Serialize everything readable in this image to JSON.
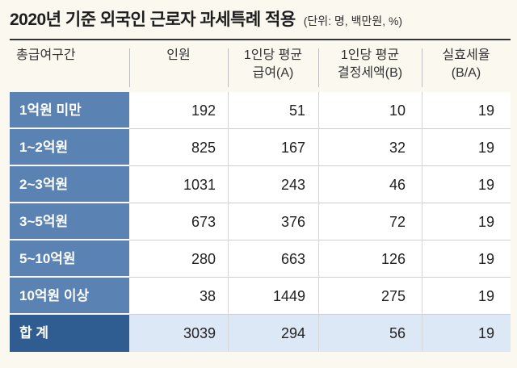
{
  "title": "2020년 기준 외국인 근로자 과세특례 적용",
  "unit": "(단위: 명, 백만원, %)",
  "headers": [
    [
      "총급여구간"
    ],
    [
      "인원"
    ],
    [
      "1인당 평균",
      "급여(A)"
    ],
    [
      "1인당 평균",
      "결정세액(B)"
    ],
    [
      "실효세율",
      "(B/A)"
    ]
  ],
  "chart_data": {
    "type": "table",
    "title": "2020년 기준 외국인 근로자 과세특례 적용",
    "unit": "(단위: 명, 백만원, %)",
    "columns": [
      "총급여구간",
      "인원",
      "1인당 평균 급여(A)",
      "1인당 평균 결정세액(B)",
      "실효세율 (B/A)"
    ],
    "rows": [
      [
        "1억원 미만",
        "192",
        "51",
        "10",
        "19"
      ],
      [
        "1~2억원",
        "825",
        "167",
        "32",
        "19"
      ],
      [
        "2~3억원",
        "1031",
        "243",
        "46",
        "19"
      ],
      [
        "3~5억원",
        "673",
        "376",
        "72",
        "19"
      ],
      [
        "5~10억원",
        "280",
        "663",
        "126",
        "19"
      ],
      [
        "10억원 이상",
        "38",
        "1449",
        "275",
        "19"
      ],
      [
        "합 계",
        "3039",
        "294",
        "56",
        "19"
      ]
    ]
  },
  "colors": {
    "label_bg": "#5a82b2",
    "total_label_bg": "#2f5d92",
    "total_row_bg": "#dde8f6",
    "page_bg": "#fbf8ef"
  }
}
